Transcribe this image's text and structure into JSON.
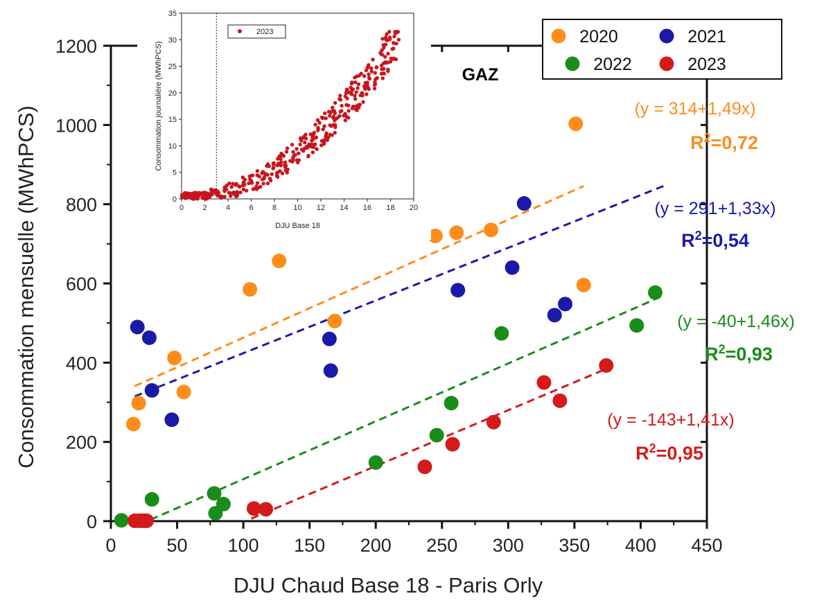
{
  "chart_data": [
    {
      "type": "scatter",
      "title": "GAZ",
      "xlabel": "DJU Chaud Base 18 - Paris Orly",
      "ylabel": "Consommation mensuelle (MWhPCS)",
      "xlim": [
        0,
        450
      ],
      "ylim": [
        0,
        1200
      ],
      "xticks": [
        "0",
        "50",
        "100",
        "150",
        "200",
        "250",
        "300",
        "350",
        "400",
        "450"
      ],
      "yticks": [
        "0",
        "200",
        "400",
        "600",
        "800",
        "1000",
        "1200"
      ],
      "legend_placement": "top-right",
      "series": [
        {
          "name": "2020",
          "color": "#ff8c1a",
          "points": [
            [
              17,
              245
            ],
            [
              21,
              298
            ],
            [
              48,
              412
            ],
            [
              55,
              326
            ],
            [
              105,
              585
            ],
            [
              127,
              657
            ],
            [
              169,
              505
            ],
            [
              245,
              720
            ],
            [
              261,
              728
            ],
            [
              287,
              735
            ],
            [
              351,
              1003
            ],
            [
              357,
              596
            ]
          ],
          "fit": {
            "intercept": 314,
            "slope": 1.49,
            "x_range": [
              18,
              357
            ],
            "equation": "(y = 314+1,49x)",
            "r2_label": "R",
            "r2_sup": "2",
            "r2_value": "=0,72"
          }
        },
        {
          "name": "2021",
          "color": "#1a1aa8",
          "points": [
            [
              20,
              490
            ],
            [
              29,
              463
            ],
            [
              31,
              330
            ],
            [
              46,
              256
            ],
            [
              165,
              460
            ],
            [
              166,
              380
            ],
            [
              262,
              583
            ],
            [
              303,
              640
            ],
            [
              312,
              802
            ],
            [
              335,
              520
            ],
            [
              343,
              548
            ]
          ],
          "fit": {
            "intercept": 291,
            "slope": 1.33,
            "x_range": [
              18,
              420
            ],
            "equation": "(y = 291+1,33x)",
            "r2_label": "R",
            "r2_sup": "2",
            "r2_value": "=0,54"
          }
        },
        {
          "name": "2022",
          "color": "#1a8c1a",
          "points": [
            [
              8,
              2
            ],
            [
              31,
              55
            ],
            [
              78,
              70
            ],
            [
              79,
              20
            ],
            [
              85,
              43
            ],
            [
              200,
              148
            ],
            [
              246,
              217
            ],
            [
              257,
              298
            ],
            [
              295,
              474
            ],
            [
              397,
              494
            ],
            [
              411,
              577
            ]
          ],
          "fit": {
            "intercept": -40,
            "slope": 1.46,
            "x_range": [
              30,
              411
            ],
            "equation": "(y =  -40+1,46x)",
            "r2_label": "R",
            "r2_sup": "2",
            "r2_value": "=0,93"
          }
        },
        {
          "name": "2023",
          "color": "#d41a1a",
          "points": [
            [
              18,
              1
            ],
            [
              21,
              1
            ],
            [
              23,
              1
            ],
            [
              25,
              1
            ],
            [
              27,
              1
            ],
            [
              108,
              32
            ],
            [
              117,
              30
            ],
            [
              237,
              137
            ],
            [
              258,
              194
            ],
            [
              289,
              250
            ],
            [
              327,
              350
            ],
            [
              339,
              304
            ],
            [
              374,
              393
            ]
          ],
          "fit": {
            "intercept": -143,
            "slope": 1.41,
            "x_range": [
              106,
              374
            ],
            "equation": "(y = -143+1,41x)",
            "r2_label": "R",
            "r2_sup": "2",
            "r2_value": "=0,95"
          }
        }
      ]
    },
    {
      "type": "scatter",
      "xlabel": "DJU Base 18",
      "ylabel": "Consommation journalière (MWhPCS)",
      "xlim": [
        0,
        20
      ],
      "ylim": [
        0,
        35
      ],
      "xticks": [
        "0",
        "2",
        "4",
        "6",
        "8",
        "10",
        "12",
        "14",
        "16",
        "18",
        "20"
      ],
      "yticks": [
        "0",
        "5",
        "10",
        "15",
        "20",
        "25",
        "30",
        "35"
      ],
      "threshold_x": 3,
      "legend_placement": "top-left",
      "series": [
        {
          "name": "2023",
          "color": "#c8161e",
          "points": "dense cloud: near 0 for x<3, rising roughly as 0.1*x^2 up to ~31 at x~18.7"
        }
      ]
    }
  ]
}
